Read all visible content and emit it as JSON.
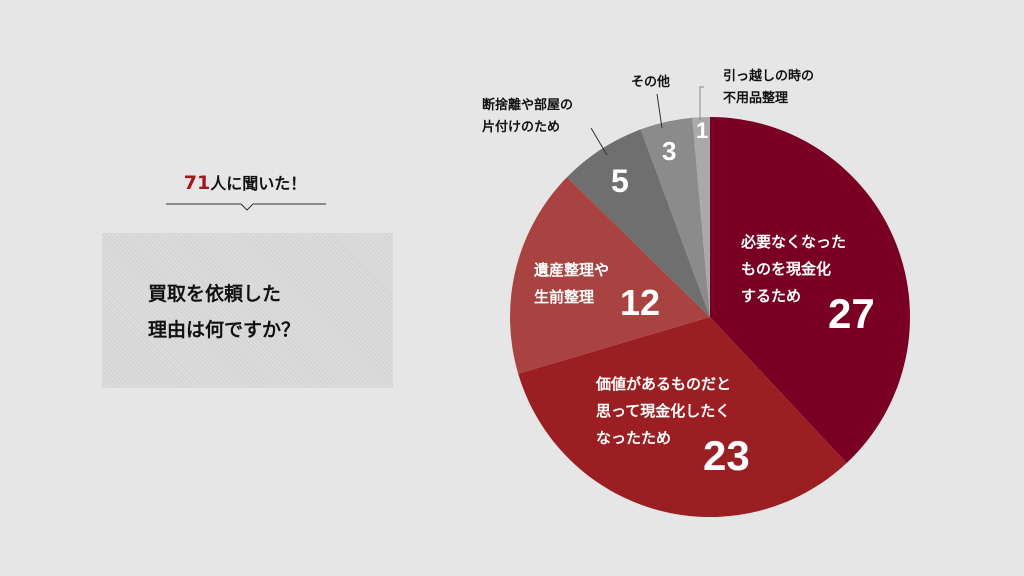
{
  "header": {
    "count": "71",
    "count_suffix": "人に聞いた！"
  },
  "question": "買取を依頼した\n理由は何ですか？",
  "chart_data": {
    "type": "pie",
    "start": "top",
    "direction": "clockwise",
    "slices": [
      {
        "label": "必要なくなった\nものを現金化\nするため",
        "value": 27,
        "color": "#7a0023"
      },
      {
        "label": "価値があるものだと\n思って現金化したく\nなったため",
        "value": 23,
        "color": "#9a1e22"
      },
      {
        "label": "遺産整理や\n生前整理",
        "value": 12,
        "color": "#a84341"
      },
      {
        "label": "断捨離や部屋の\n片付けのため",
        "value": 5,
        "color": "#6f6f6f"
      },
      {
        "label": "その他",
        "value": 3,
        "color": "#8b8b8b"
      },
      {
        "label": "引っ越しの時の\n不用品整理",
        "value": 1,
        "color": "#a9a9a9"
      }
    ]
  }
}
